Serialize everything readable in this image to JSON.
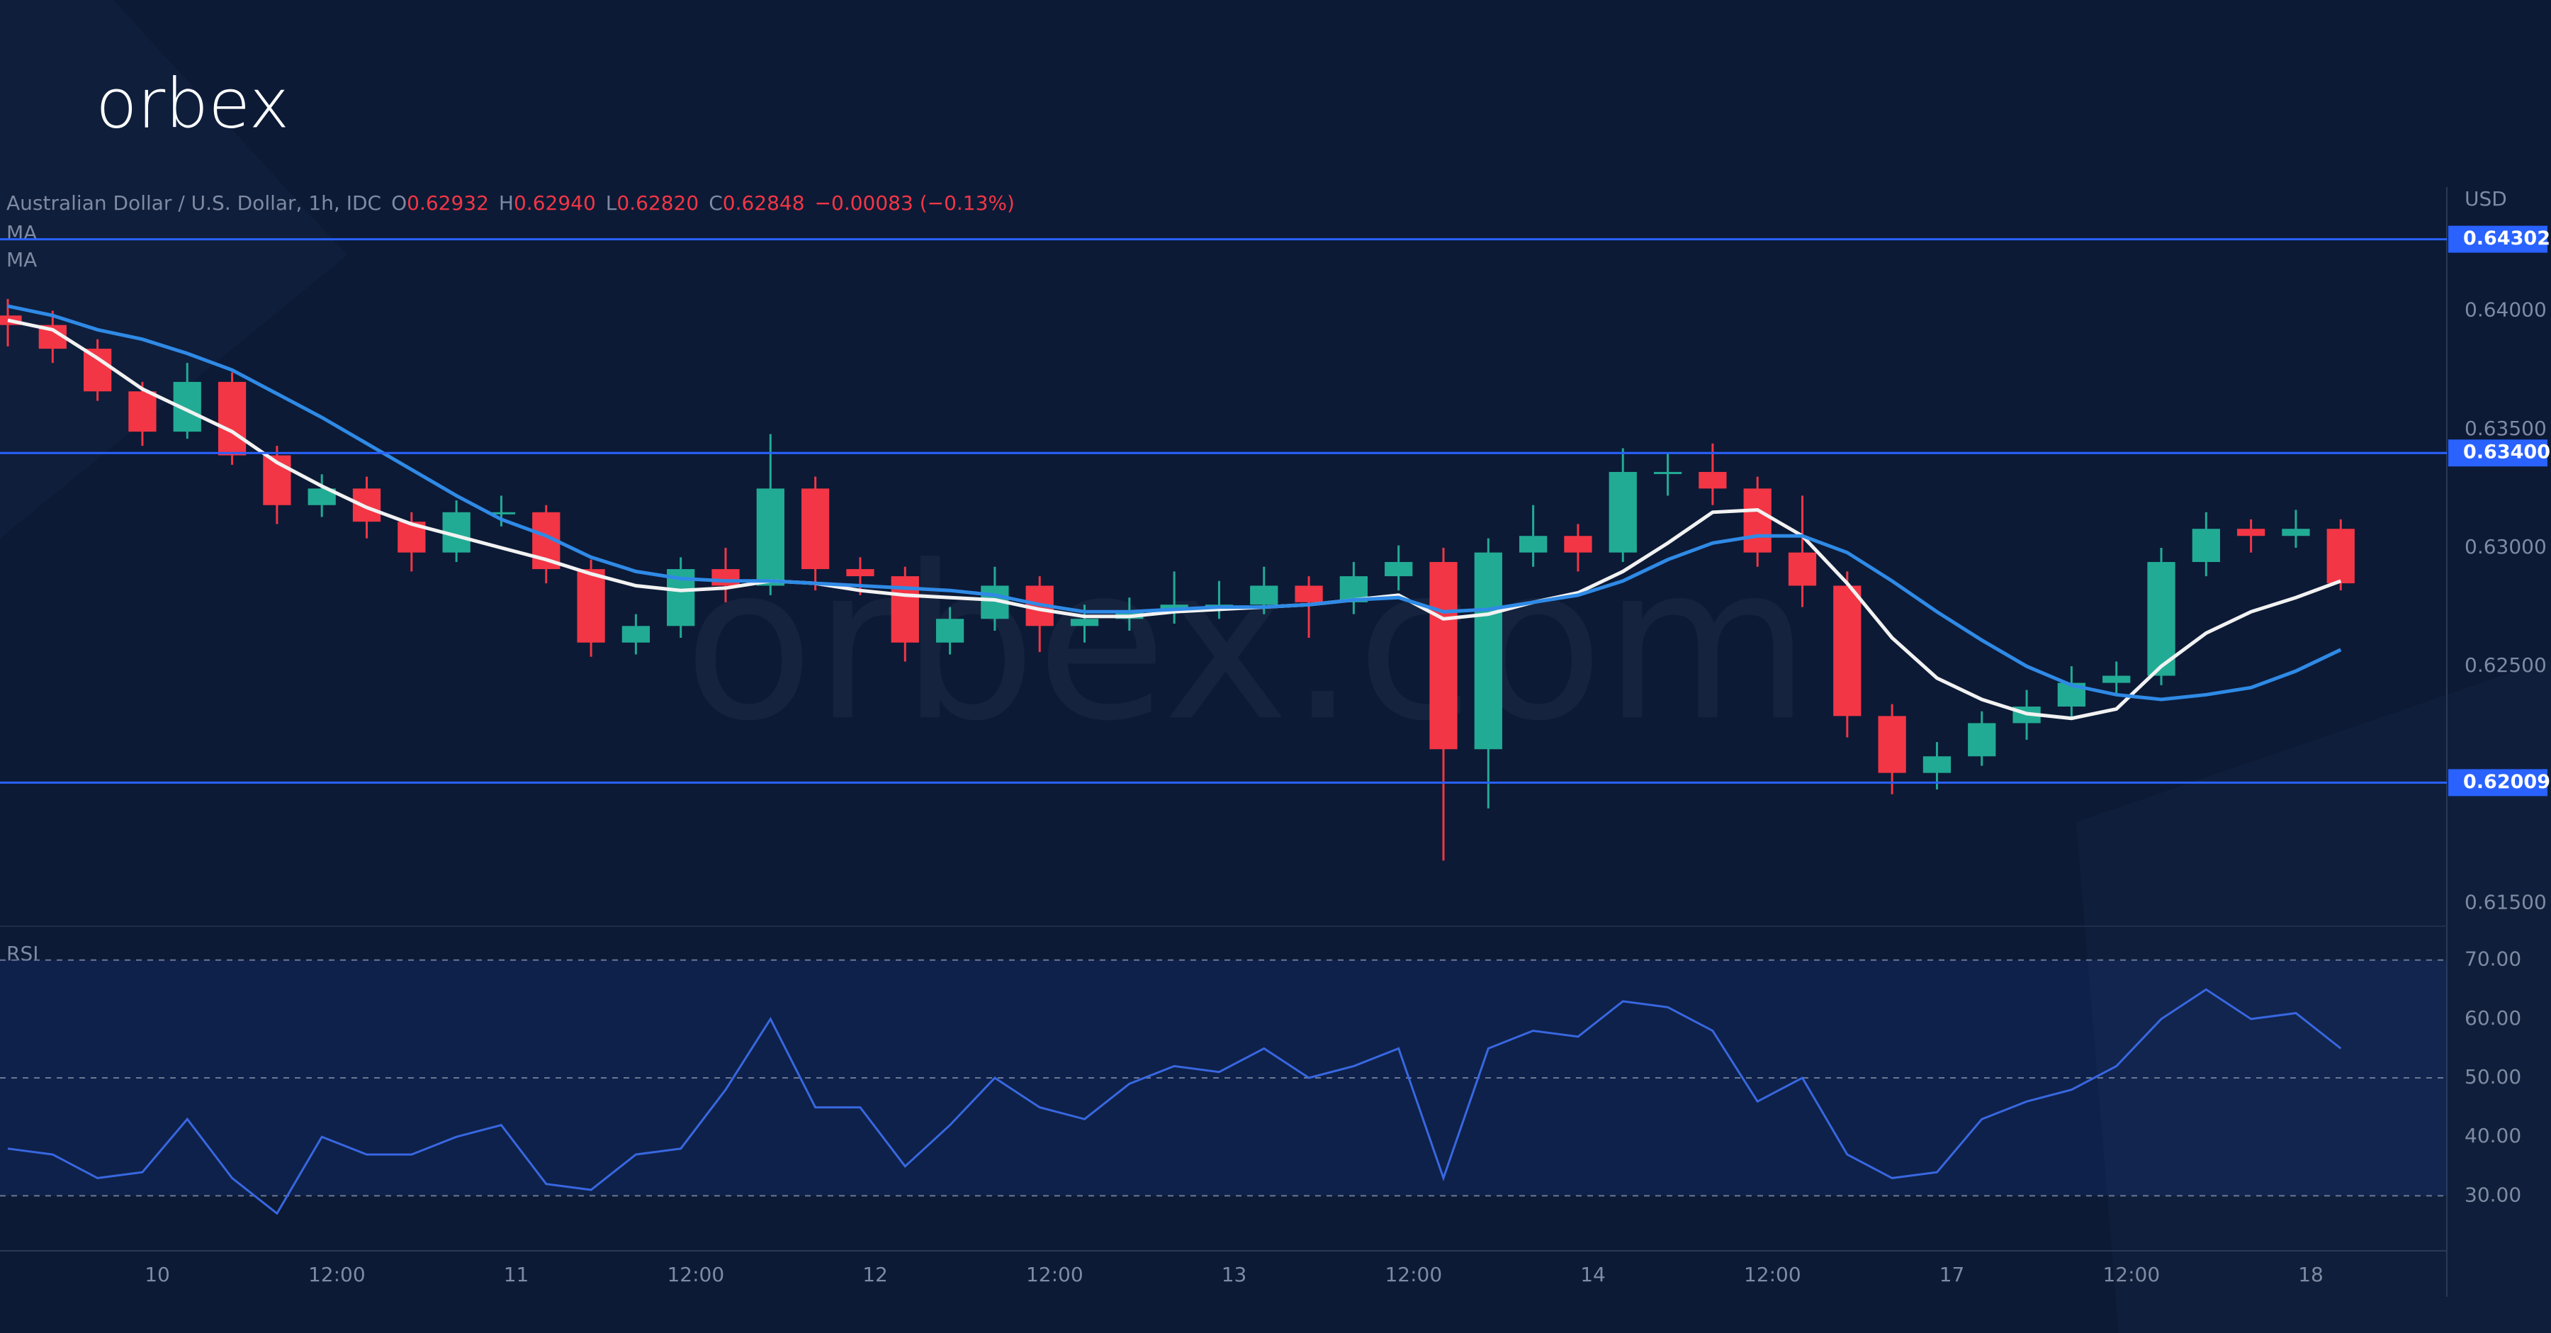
{
  "brand": "orbex",
  "watermark": "orbex.com",
  "chart_data": [
    {
      "type": "candlestick",
      "title": "Australian Dollar / U.S. Dollar, 1h, IDC",
      "legend_values": [
        {
          "label": "O",
          "value": "0.62932"
        },
        {
          "label": "H",
          "value": "0.62940"
        },
        {
          "label": "L",
          "value": "0.62820"
        },
        {
          "label": "C",
          "value": "0.62848"
        }
      ],
      "change": "−0.00083 (−0.13%)",
      "axis_unit": "USD",
      "x": [
        0,
        3,
        6,
        9,
        12,
        15,
        18,
        21,
        24,
        27,
        30,
        33,
        36,
        39,
        42,
        45,
        48,
        51,
        54,
        57,
        60,
        63,
        66,
        69,
        72,
        75,
        78,
        81,
        84,
        87,
        90,
        93,
        96,
        99,
        102,
        105,
        108,
        111,
        114,
        117,
        120,
        123,
        126,
        129,
        132,
        135,
        138,
        141,
        144,
        147,
        150,
        153,
        156
      ],
      "xlim": [
        0,
        163
      ],
      "xticks": [
        10,
        {
          "value": 22,
          "label": "12:00"
        },
        {
          "value": 34,
          "label": "11"
        },
        {
          "value": 46,
          "label": "12:00"
        },
        {
          "value": 58,
          "label": "12"
        },
        {
          "value": 70,
          "label": "12:00"
        },
        {
          "value": 82,
          "label": "13"
        },
        {
          "value": 94,
          "label": "12:00"
        },
        {
          "value": 106,
          "label": "14"
        },
        {
          "value": 118,
          "label": "12:00"
        },
        {
          "value": 130,
          "label": "17"
        },
        {
          "value": 142,
          "label": "12:00"
        },
        {
          "value": 154,
          "label": "18"
        }
      ],
      "open": [
        0.6398,
        0.6394,
        0.6384,
        0.6366,
        0.6349,
        0.637,
        0.6339,
        0.6318,
        0.6325,
        0.6311,
        0.6298,
        0.6315,
        0.6315,
        0.6291,
        0.626,
        0.6267,
        0.6291,
        0.6284,
        0.6325,
        0.6291,
        0.6288,
        0.626,
        0.627,
        0.6284,
        0.6267,
        0.627,
        0.6273,
        0.6276,
        0.6276,
        0.6284,
        0.6277,
        0.6288,
        0.6294,
        0.6215,
        0.6298,
        0.6305,
        0.6298,
        0.6332,
        0.6332,
        0.6325,
        0.6298,
        0.6284,
        0.6229,
        0.6205,
        0.6212,
        0.6226,
        0.6233,
        0.6243,
        0.6246,
        0.6294,
        0.6308,
        0.6305,
        0.6308
      ],
      "high": [
        0.6405,
        0.64,
        0.6388,
        0.637,
        0.6378,
        0.6374,
        0.6343,
        0.6331,
        0.633,
        0.6315,
        0.632,
        0.6322,
        0.6318,
        0.6295,
        0.6272,
        0.6296,
        0.63,
        0.6348,
        0.633,
        0.6296,
        0.6292,
        0.6275,
        0.6292,
        0.6288,
        0.6276,
        0.6279,
        0.629,
        0.6286,
        0.6292,
        0.6288,
        0.6294,
        0.6301,
        0.63,
        0.6304,
        0.6318,
        0.631,
        0.6342,
        0.634,
        0.6344,
        0.633,
        0.6322,
        0.629,
        0.6234,
        0.6218,
        0.6231,
        0.624,
        0.625,
        0.6252,
        0.63,
        0.6315,
        0.6312,
        0.6316,
        0.6312
      ],
      "low": [
        0.6385,
        0.6378,
        0.6362,
        0.6343,
        0.6346,
        0.6335,
        0.631,
        0.6313,
        0.6304,
        0.629,
        0.6294,
        0.6309,
        0.6285,
        0.6254,
        0.6255,
        0.6262,
        0.6277,
        0.628,
        0.6282,
        0.628,
        0.6252,
        0.6255,
        0.6265,
        0.6256,
        0.626,
        0.6265,
        0.6268,
        0.627,
        0.6272,
        0.6262,
        0.6272,
        0.6282,
        0.6168,
        0.619,
        0.6292,
        0.629,
        0.6294,
        0.6322,
        0.6318,
        0.6292,
        0.6275,
        0.622,
        0.6196,
        0.6198,
        0.6208,
        0.6219,
        0.6228,
        0.6238,
        0.6242,
        0.6288,
        0.6298,
        0.63,
        0.6282
      ],
      "close": [
        0.6394,
        0.6384,
        0.6366,
        0.6349,
        0.637,
        0.6339,
        0.6318,
        0.6325,
        0.6311,
        0.6298,
        0.6315,
        0.6315,
        0.6291,
        0.626,
        0.6267,
        0.6291,
        0.6284,
        0.6325,
        0.6291,
        0.6288,
        0.626,
        0.627,
        0.6284,
        0.6267,
        0.627,
        0.6273,
        0.6276,
        0.6276,
        0.6284,
        0.6277,
        0.6288,
        0.6294,
        0.6215,
        0.6298,
        0.6305,
        0.6298,
        0.6332,
        0.6332,
        0.6325,
        0.6298,
        0.6284,
        0.6229,
        0.6205,
        0.6212,
        0.6226,
        0.6233,
        0.6243,
        0.6246,
        0.6294,
        0.6308,
        0.6305,
        0.6308,
        0.6285
      ],
      "up_color": "#22ab94",
      "down_color": "#f23645",
      "series": [
        {
          "name": "MA",
          "color": "#f2f2f2",
          "values": [
            0.6396,
            0.6392,
            0.638,
            0.6367,
            0.6358,
            0.6349,
            0.6336,
            0.6326,
            0.6317,
            0.631,
            0.6305,
            0.63,
            0.6295,
            0.6289,
            0.6284,
            0.6282,
            0.6283,
            0.6286,
            0.6285,
            0.6282,
            0.628,
            0.6279,
            0.6278,
            0.6274,
            0.6271,
            0.6271,
            0.6273,
            0.6274,
            0.6275,
            0.6276,
            0.6278,
            0.628,
            0.627,
            0.6272,
            0.6277,
            0.6281,
            0.629,
            0.6302,
            0.6315,
            0.6316,
            0.6305,
            0.6285,
            0.6262,
            0.6245,
            0.6236,
            0.623,
            0.6228,
            0.6232,
            0.625,
            0.6264,
            0.6273,
            0.6279,
            0.6286
          ]
        },
        {
          "name": "MA",
          "color": "#2f8ae6",
          "values": [
            0.6402,
            0.6398,
            0.6392,
            0.6388,
            0.6382,
            0.6375,
            0.6365,
            0.6355,
            0.6344,
            0.6333,
            0.6322,
            0.6312,
            0.6305,
            0.6296,
            0.629,
            0.6287,
            0.6286,
            0.6286,
            0.6285,
            0.6284,
            0.6283,
            0.6282,
            0.628,
            0.6276,
            0.6273,
            0.6273,
            0.6274,
            0.6275,
            0.6275,
            0.6276,
            0.6278,
            0.6279,
            0.6273,
            0.6274,
            0.6277,
            0.628,
            0.6286,
            0.6295,
            0.6302,
            0.6305,
            0.6305,
            0.6298,
            0.6286,
            0.6273,
            0.6261,
            0.625,
            0.6242,
            0.6238,
            0.6236,
            0.6238,
            0.6241,
            0.6248,
            0.6257
          ]
        }
      ],
      "ylim": [
        0.61412,
        0.64522
      ],
      "yticks": [
        {
          "value": 0.615,
          "label": "0.61500"
        },
        {
          "value": 0.625,
          "label": "0.62500"
        },
        {
          "value": 0.63,
          "label": "0.63000"
        },
        {
          "value": 0.635,
          "label": "0.63500"
        },
        {
          "value": 0.64,
          "label": "0.64000"
        }
      ],
      "levels": [
        0.64302,
        {
          "value": 0.634,
          "label": "0.63400"
        },
        0.62009
      ],
      "level_color": "#2962ff"
    },
    {
      "type": "line",
      "title": "RSI",
      "series": [
        {
          "name": "RSI",
          "color": "#3867e0",
          "values": [
            38,
            37,
            33,
            34,
            43,
            33,
            27,
            40,
            37,
            37,
            40,
            42,
            32,
            31,
            37,
            38,
            48,
            60,
            45,
            45,
            35,
            42,
            50,
            45,
            43,
            49,
            52,
            51,
            55,
            50,
            52,
            55,
            33,
            55,
            58,
            57,
            63,
            62,
            58,
            46,
            50,
            37,
            33,
            34,
            43,
            46,
            48,
            52,
            60,
            65,
            60,
            61,
            55
          ]
        }
      ],
      "ylim": [
        20.9,
        75.5
      ],
      "yticks": [
        {
          "value": 30,
          "label": "30.00"
        },
        {
          "value": 40,
          "label": "40.00"
        },
        {
          "value": 50,
          "label": "50.00"
        },
        {
          "value": 60,
          "label": "60.00"
        },
        {
          "value": 70,
          "label": "70.00"
        }
      ],
      "levels": [
        30,
        50,
        70
      ]
    }
  ]
}
